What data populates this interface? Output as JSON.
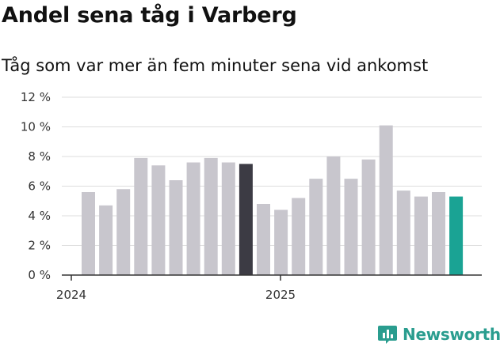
{
  "header": {
    "title": "Andel sena tåg i Varberg",
    "subtitle": "Tåg som var mer än fem minuter sena vid ankomst"
  },
  "brand": {
    "name": "Newsworthy",
    "icon": "bar-chart-logo-icon"
  },
  "colors": {
    "default_bar": "#c8c6cd",
    "highlight_bar": "#3c3b44",
    "latest_bar": "#1aa394",
    "brand": "#2a9d8f",
    "grid": "#dddddd",
    "axis": "#333333"
  },
  "chart_data": {
    "type": "bar",
    "title": "Andel sena tåg i Varberg",
    "subtitle": "Tåg som var mer än fem minuter sena vid ankomst",
    "xlabel": "",
    "ylabel": "",
    "ylim": [
      0,
      12
    ],
    "yticks": [
      0,
      2,
      4,
      6,
      8,
      10,
      12
    ],
    "ytick_labels": [
      "0 %",
      "2 %",
      "4 %",
      "6 %",
      "8 %",
      "10 %",
      "12 %"
    ],
    "xtick_labels": [
      "2024",
      "2025"
    ],
    "grid": true,
    "categories": [
      "2024-01",
      "2024-02",
      "2024-03",
      "2024-04",
      "2024-05",
      "2024-06",
      "2024-07",
      "2024-08",
      "2024-09",
      "2024-10",
      "2024-11",
      "2024-12",
      "2025-01",
      "2025-02",
      "2025-03",
      "2025-04",
      "2025-05",
      "2025-06",
      "2025-07",
      "2025-08",
      "2025-09",
      "2025-10"
    ],
    "values": [
      5.6,
      4.7,
      5.8,
      7.9,
      7.4,
      6.4,
      7.6,
      7.9,
      7.6,
      7.5,
      4.8,
      4.4,
      5.2,
      6.5,
      8.0,
      6.5,
      7.8,
      10.1,
      5.7,
      5.3,
      5.6,
      5.3
    ],
    "highlight": {
      "2024-10": "dark",
      "2025-10": "latest"
    }
  }
}
